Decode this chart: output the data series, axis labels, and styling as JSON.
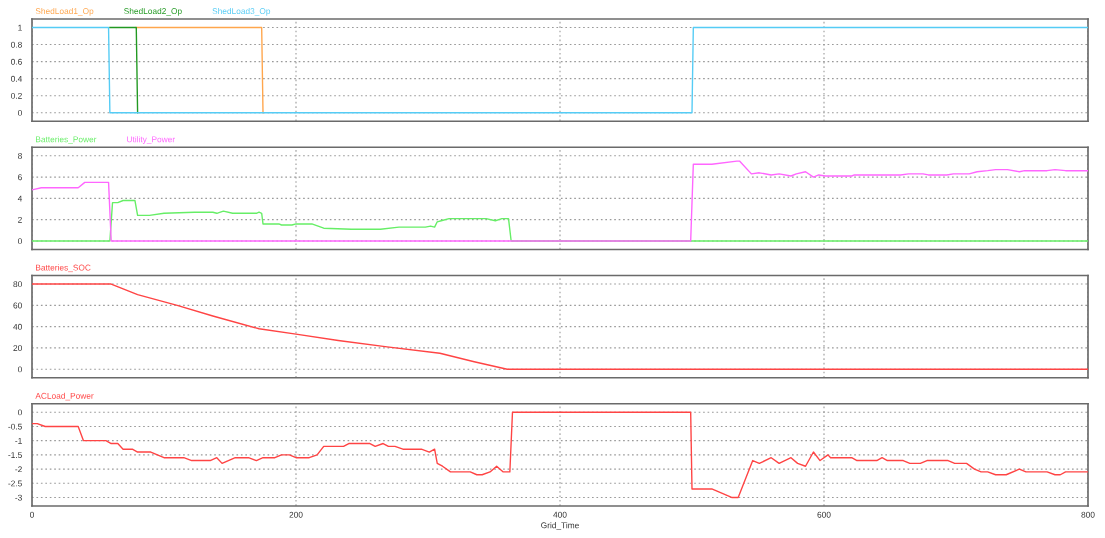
{
  "chart_data": [
    {
      "type": "line",
      "legend": "top left",
      "grid": true,
      "tick_labels": "y",
      "xlim": [
        0,
        800
      ],
      "xticks": [
        0,
        200,
        400,
        600,
        800
      ],
      "ylim": [
        -0.1,
        1.1
      ],
      "yticks": [
        0,
        0.2,
        0.4,
        0.6,
        0.8,
        1
      ],
      "series": [
        {
          "name": "ShedLoad1_Op",
          "color": "#ffa64d",
          "x": [
            79,
            174,
            175
          ],
          "values": [
            1,
            1,
            0
          ]
        },
        {
          "name": "ShedLoad2_Op",
          "color": "#229922",
          "x": [
            59,
            79,
            80
          ],
          "values": [
            1,
            1,
            0
          ]
        },
        {
          "name": "ShedLoad3_Op",
          "color": "#55ccf5",
          "x": [
            0,
            58,
            59,
            500,
            501,
            800
          ],
          "values": [
            1,
            1,
            0,
            0,
            1,
            1
          ]
        }
      ]
    },
    {
      "type": "line",
      "legend": "top left",
      "grid": true,
      "tick_labels": "y",
      "xlim": [
        0,
        800
      ],
      "xticks": [
        0,
        200,
        400,
        600,
        800
      ],
      "ylim": [
        -0.8,
        8.8
      ],
      "yticks": [
        0,
        2,
        4,
        6,
        8
      ],
      "series": [
        {
          "name": "Batteries_Power",
          "color": "#66ee66",
          "x": [
            0,
            59,
            61,
            65,
            69,
            78,
            80,
            89,
            100,
            123,
            137,
            140,
            145,
            152,
            170,
            172,
            174,
            175,
            187,
            189,
            197,
            200,
            212,
            221,
            242,
            264,
            278,
            298,
            302,
            305,
            307,
            310,
            316,
            335,
            344,
            351,
            356,
            361,
            363,
            800
          ],
          "values": [
            0,
            0,
            3.6,
            3.6,
            3.8,
            3.8,
            2.4,
            2.4,
            2.6,
            2.7,
            2.7,
            2.6,
            2.8,
            2.6,
            2.6,
            2.7,
            2.6,
            1.6,
            1.6,
            1.5,
            1.5,
            1.6,
            1.6,
            1.2,
            1.1,
            1.1,
            1.3,
            1.3,
            1.4,
            1.3,
            1.8,
            1.9,
            2.1,
            2.1,
            2.1,
            1.9,
            2.1,
            2.1,
            0,
            0
          ]
        },
        {
          "name": "Utility_Power",
          "color": "#ff66ff",
          "x": [
            0,
            7,
            35,
            40,
            58,
            60,
            499,
            501,
            515,
            534,
            536,
            545,
            551,
            560,
            566,
            575,
            579,
            586,
            592,
            596,
            601,
            621,
            623,
            658,
            664,
            675,
            679,
            693,
            698,
            710,
            716,
            724,
            730,
            739,
            748,
            752,
            769,
            775,
            783,
            800
          ],
          "values": [
            4.8,
            5.0,
            5.0,
            5.5,
            5.5,
            0,
            0,
            7.2,
            7.2,
            7.5,
            7.5,
            6.3,
            6.4,
            6.2,
            6.3,
            6.1,
            6.3,
            6.5,
            6.0,
            6.2,
            6.1,
            6.1,
            6.2,
            6.2,
            6.3,
            6.3,
            6.2,
            6.2,
            6.3,
            6.3,
            6.5,
            6.6,
            6.7,
            6.7,
            6.5,
            6.6,
            6.6,
            6.7,
            6.6,
            6.6
          ]
        }
      ]
    },
    {
      "type": "line",
      "legend": "top left",
      "grid": true,
      "tick_labels": "y",
      "xlim": [
        0,
        800
      ],
      "xticks": [
        0,
        200,
        400,
        600,
        800
      ],
      "ylim": [
        -8,
        88
      ],
      "yticks": [
        0,
        20,
        40,
        60,
        80
      ],
      "series": [
        {
          "name": "Batteries_SOC",
          "color": "#ff4444",
          "x": [
            0,
            60,
            80,
            110,
            137,
            172,
            200,
            232,
            269,
            309,
            335,
            360,
            800
          ],
          "values": [
            80,
            80,
            70,
            60,
            50,
            38,
            33,
            27,
            21,
            15,
            7,
            0,
            0
          ]
        }
      ]
    },
    {
      "type": "line",
      "legend": "top left",
      "grid": true,
      "xlabel": "Grid_Time",
      "xlim": [
        0,
        800
      ],
      "xticks": [
        0,
        200,
        400,
        600,
        800
      ],
      "ylim": [
        -3.3,
        0.3
      ],
      "yticks": [
        -3,
        -2.5,
        -2,
        -1.5,
        -1,
        -0.5,
        0
      ],
      "series": [
        {
          "name": "ACLoad_Power",
          "color": "#ff4444",
          "x": [
            0,
            4,
            10,
            35,
            39,
            56,
            60,
            65,
            69,
            76,
            80,
            90,
            100,
            115,
            121,
            135,
            140,
            144,
            154,
            164,
            170,
            175,
            184,
            189,
            195,
            200,
            210,
            216,
            221,
            236,
            240,
            256,
            260,
            266,
            270,
            275,
            281,
            295,
            301,
            305,
            307,
            311,
            317,
            332,
            337,
            341,
            347,
            352,
            357,
            362,
            364,
            499,
            500,
            515,
            530,
            535,
            546,
            551,
            560,
            566,
            575,
            580,
            586,
            592,
            597,
            603,
            605,
            621,
            625,
            640,
            644,
            648,
            660,
            665,
            673,
            678,
            694,
            699,
            708,
            714,
            719,
            724,
            730,
            738,
            748,
            753,
            769,
            775,
            779,
            783,
            800
          ],
          "values": [
            -0.4,
            -0.4,
            -0.5,
            -0.5,
            -1,
            -1,
            -1.1,
            -1.1,
            -1.3,
            -1.3,
            -1.4,
            -1.4,
            -1.6,
            -1.6,
            -1.7,
            -1.7,
            -1.6,
            -1.8,
            -1.6,
            -1.6,
            -1.7,
            -1.6,
            -1.6,
            -1.5,
            -1.5,
            -1.6,
            -1.6,
            -1.5,
            -1.2,
            -1.2,
            -1.1,
            -1.1,
            -1.2,
            -1.1,
            -1.2,
            -1.2,
            -1.3,
            -1.3,
            -1.4,
            -1.3,
            -1.8,
            -1.9,
            -2.1,
            -2.1,
            -2.2,
            -2.2,
            -2.1,
            -1.9,
            -2.1,
            -2.1,
            0,
            0,
            -2.7,
            -2.7,
            -3,
            -3,
            -1.7,
            -1.8,
            -1.6,
            -1.8,
            -1.6,
            -1.8,
            -1.9,
            -1.4,
            -1.7,
            -1.5,
            -1.6,
            -1.6,
            -1.7,
            -1.7,
            -1.6,
            -1.7,
            -1.7,
            -1.8,
            -1.8,
            -1.7,
            -1.7,
            -1.8,
            -1.8,
            -2,
            -2.1,
            -2.1,
            -2.2,
            -2.2,
            -2,
            -2.1,
            -2.1,
            -2.2,
            -2.2,
            -2.1,
            -2.1
          ]
        }
      ]
    }
  ]
}
